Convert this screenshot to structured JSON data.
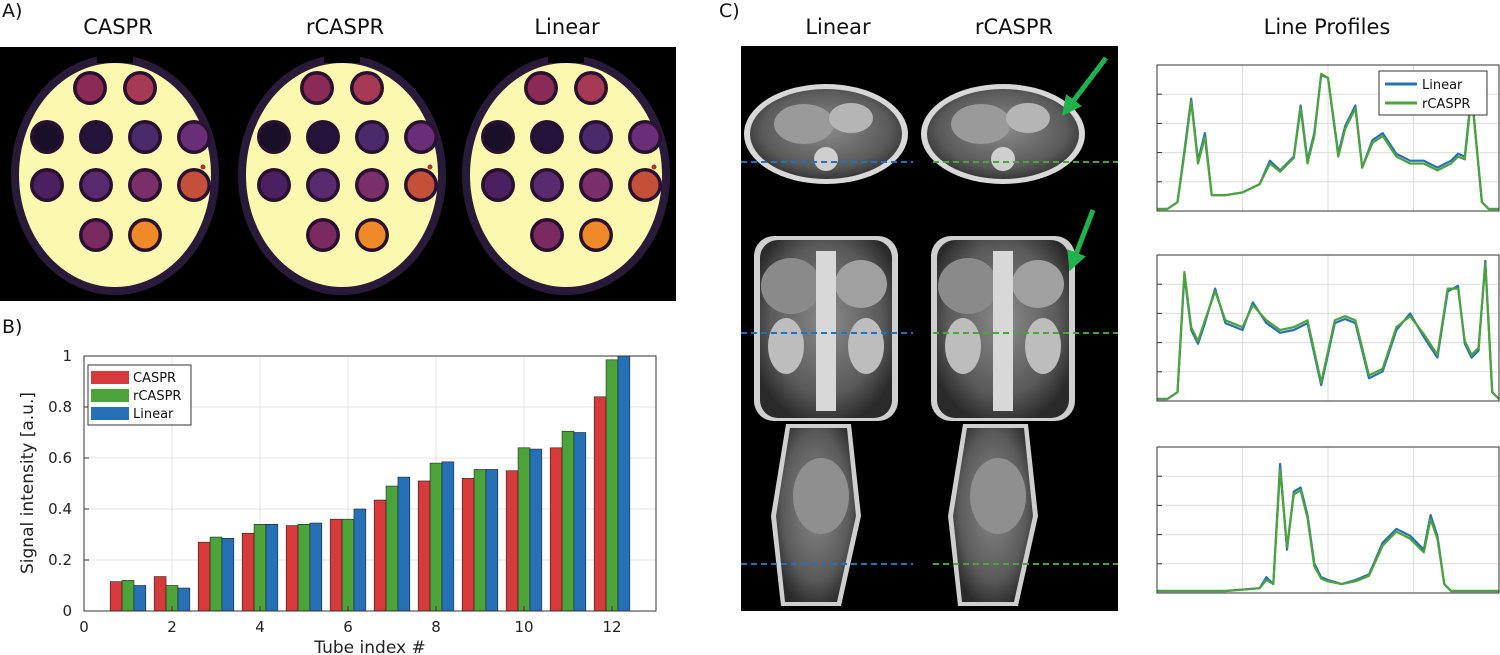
{
  "panels": {
    "a_label": "A)",
    "b_label": "B)",
    "c_label": "C)"
  },
  "panel_a": {
    "titles": [
      "CASPR",
      "rCASPR",
      "Linear"
    ]
  },
  "panel_c": {
    "titles": [
      "Linear",
      "rCASPR",
      "Line Profiles"
    ]
  },
  "colors": {
    "caspr": "#d63a3a",
    "rcaspr": "#4ca33a",
    "linear": "#2670b8",
    "arrow": "#21b24b",
    "phantom_fill": "#fbf8b0"
  },
  "chart_data": [
    {
      "type": "bar",
      "xlabel": "Tube index #",
      "ylabel": "Signal intensity [a.u.]",
      "xlim": [
        0,
        13
      ],
      "ylim": [
        0,
        1
      ],
      "xticks": [
        0,
        2,
        4,
        6,
        8,
        10,
        12
      ],
      "yticks": [
        0,
        0.2,
        0.4,
        0.6,
        0.8,
        1
      ],
      "grid": true,
      "legend_position": "top-left",
      "categories": [
        1,
        2,
        3,
        4,
        5,
        6,
        7,
        8,
        9,
        10,
        11,
        12
      ],
      "series": [
        {
          "name": "CASPR",
          "values": [
            0.115,
            0.135,
            0.27,
            0.305,
            0.335,
            0.36,
            0.435,
            0.51,
            0.52,
            0.55,
            0.64,
            0.84
          ]
        },
        {
          "name": "rCASPR",
          "values": [
            0.12,
            0.1,
            0.29,
            0.34,
            0.34,
            0.36,
            0.49,
            0.58,
            0.555,
            0.64,
            0.705,
            0.985
          ]
        },
        {
          "name": "Linear",
          "values": [
            0.1,
            0.09,
            0.285,
            0.34,
            0.345,
            0.4,
            0.525,
            0.585,
            0.555,
            0.635,
            0.7,
            1.0
          ]
        }
      ]
    },
    {
      "type": "line",
      "legend_position": "top-right",
      "grid": true,
      "x": [
        0,
        0.03,
        0.06,
        0.08,
        0.1,
        0.12,
        0.14,
        0.16,
        0.2,
        0.25,
        0.3,
        0.33,
        0.36,
        0.4,
        0.42,
        0.44,
        0.46,
        0.48,
        0.5,
        0.53,
        0.55,
        0.58,
        0.6,
        0.63,
        0.66,
        0.7,
        0.74,
        0.78,
        0.82,
        0.86,
        0.88,
        0.9,
        0.92,
        0.95,
        0.97,
        1.0
      ],
      "series": [
        {
          "name": "Linear",
          "values": [
            0.0,
            0.0,
            0.05,
            0.42,
            0.8,
            0.35,
            0.55,
            0.1,
            0.1,
            0.12,
            0.18,
            0.35,
            0.28,
            0.38,
            0.75,
            0.35,
            0.55,
            0.97,
            0.95,
            0.4,
            0.6,
            0.75,
            0.3,
            0.5,
            0.55,
            0.4,
            0.35,
            0.35,
            0.3,
            0.35,
            0.4,
            0.38,
            0.85,
            0.05,
            0.0,
            0.0
          ]
        },
        {
          "name": "rCASPR",
          "values": [
            0.0,
            0.0,
            0.05,
            0.4,
            0.78,
            0.33,
            0.52,
            0.1,
            0.1,
            0.12,
            0.18,
            0.33,
            0.27,
            0.37,
            0.73,
            0.33,
            0.53,
            0.98,
            0.95,
            0.38,
            0.58,
            0.73,
            0.3,
            0.48,
            0.53,
            0.38,
            0.33,
            0.33,
            0.28,
            0.33,
            0.38,
            0.36,
            0.83,
            0.05,
            0.0,
            0.0
          ]
        }
      ]
    },
    {
      "type": "line",
      "grid": true,
      "x": [
        0,
        0.03,
        0.06,
        0.08,
        0.1,
        0.12,
        0.14,
        0.17,
        0.2,
        0.25,
        0.28,
        0.32,
        0.36,
        0.4,
        0.44,
        0.48,
        0.52,
        0.55,
        0.58,
        0.62,
        0.66,
        0.7,
        0.74,
        0.78,
        0.82,
        0.85,
        0.88,
        0.9,
        0.92,
        0.94,
        0.96,
        0.98,
        1.0
      ],
      "series": [
        {
          "name": "Linear",
          "values": [
            0.0,
            0.0,
            0.05,
            0.9,
            0.5,
            0.4,
            0.55,
            0.8,
            0.55,
            0.5,
            0.7,
            0.55,
            0.48,
            0.5,
            0.55,
            0.1,
            0.55,
            0.58,
            0.55,
            0.15,
            0.2,
            0.5,
            0.62,
            0.45,
            0.3,
            0.78,
            0.82,
            0.4,
            0.3,
            0.35,
            1.0,
            0.05,
            0.0
          ]
        },
        {
          "name": "rCASPR",
          "values": [
            0.0,
            0.0,
            0.05,
            0.92,
            0.52,
            0.42,
            0.57,
            0.78,
            0.57,
            0.52,
            0.68,
            0.57,
            0.5,
            0.52,
            0.57,
            0.12,
            0.57,
            0.6,
            0.57,
            0.17,
            0.22,
            0.52,
            0.6,
            0.47,
            0.32,
            0.8,
            0.8,
            0.42,
            0.32,
            0.37,
            0.98,
            0.05,
            0.0
          ]
        }
      ]
    },
    {
      "type": "line",
      "grid": true,
      "x": [
        0,
        0.2,
        0.3,
        0.32,
        0.34,
        0.36,
        0.38,
        0.4,
        0.42,
        0.44,
        0.46,
        0.48,
        0.5,
        0.54,
        0.58,
        0.62,
        0.66,
        0.7,
        0.74,
        0.78,
        0.8,
        0.82,
        0.84,
        0.86,
        0.88,
        0.9,
        1.0
      ],
      "series": [
        {
          "name": "Linear",
          "values": [
            0.0,
            0.0,
            0.02,
            0.1,
            0.05,
            0.92,
            0.3,
            0.72,
            0.75,
            0.55,
            0.2,
            0.1,
            0.08,
            0.05,
            0.08,
            0.12,
            0.35,
            0.45,
            0.4,
            0.3,
            0.55,
            0.4,
            0.05,
            0.0,
            0.0,
            0.0,
            0.0
          ]
        },
        {
          "name": "rCASPR",
          "values": [
            0.0,
            0.0,
            0.02,
            0.08,
            0.05,
            0.88,
            0.32,
            0.7,
            0.73,
            0.53,
            0.18,
            0.09,
            0.07,
            0.05,
            0.07,
            0.11,
            0.33,
            0.43,
            0.38,
            0.28,
            0.52,
            0.38,
            0.05,
            0.0,
            0.0,
            0.0,
            0.0
          ]
        }
      ]
    }
  ]
}
